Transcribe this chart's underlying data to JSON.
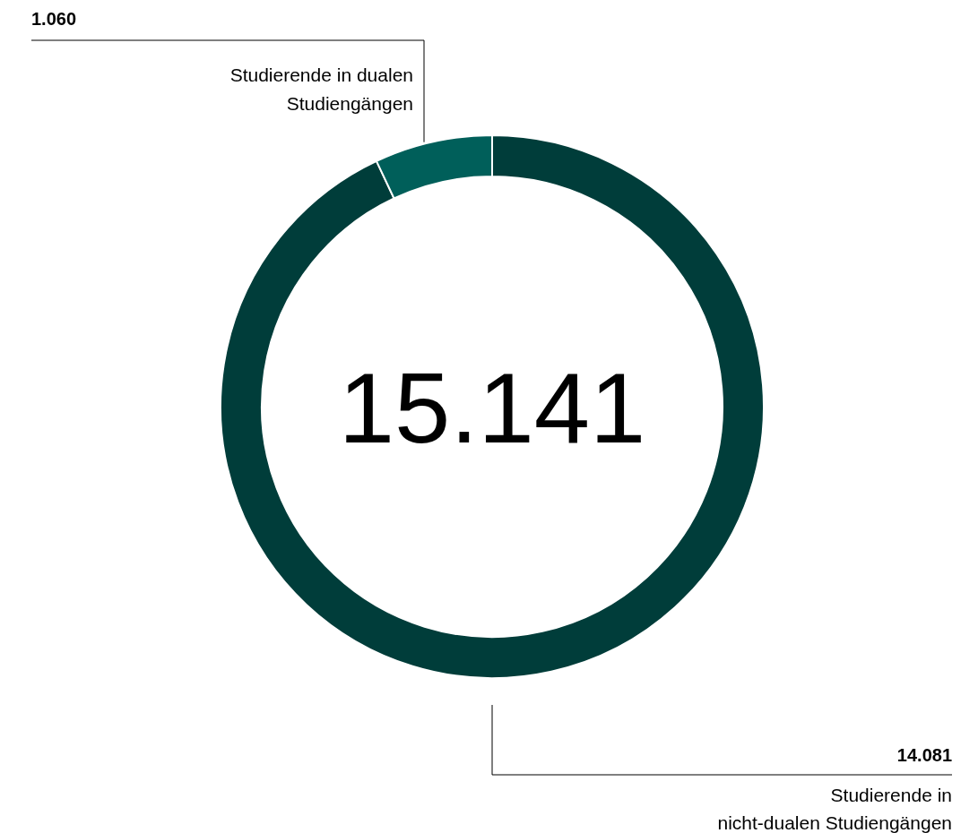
{
  "chart_data": {
    "type": "donut",
    "categories": [
      "Studierende in nicht-dualen Studiengängen",
      "Studierende in dualen Studiengängen"
    ],
    "values": [
      14081,
      1060
    ],
    "colors": [
      "#003d3a",
      "#005f5a"
    ],
    "value_labels": [
      "14.081",
      "1.060"
    ],
    "annotations": [
      "15.141"
    ]
  }
}
